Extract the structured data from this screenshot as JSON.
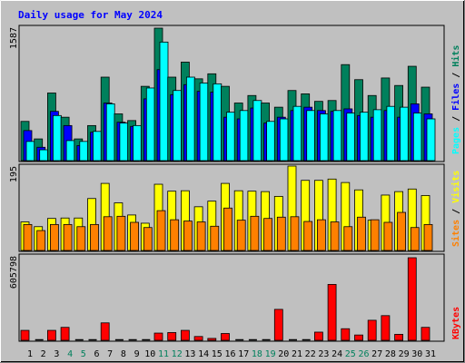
{
  "chart_data": {
    "type": "bar",
    "title": "Daily usage for May 2024",
    "days": [
      "1",
      "2",
      "3",
      "4",
      "5",
      "6",
      "7",
      "8",
      "9",
      "10",
      "11",
      "12",
      "13",
      "14",
      "15",
      "16",
      "17",
      "18",
      "19",
      "20",
      "21",
      "22",
      "23",
      "24",
      "25",
      "26",
      "27",
      "28",
      "29",
      "30",
      "31"
    ],
    "weekend_days": [
      4,
      5,
      11,
      12,
      18,
      19,
      25,
      26
    ],
    "top_panel": {
      "ymax_label": "1587",
      "ymax": 1587,
      "series": [
        {
          "name": "Hits",
          "color": "#00805c",
          "values": [
            470,
            260,
            810,
            520,
            260,
            420,
            1000,
            560,
            480,
            890,
            1587,
            1000,
            1180,
            980,
            1040,
            890,
            690,
            780,
            690,
            640,
            840,
            800,
            710,
            720,
            1150,
            970,
            780,
            990,
            900,
            1130,
            880
          ]
        },
        {
          "name": "Files",
          "color": "#0000ff",
          "values": [
            360,
            160,
            590,
            420,
            180,
            340,
            690,
            460,
            410,
            740,
            1090,
            790,
            910,
            830,
            820,
            520,
            500,
            630,
            450,
            520,
            600,
            640,
            600,
            590,
            620,
            540,
            520,
            600,
            520,
            680,
            560
          ]
        },
        {
          "name": "Pages",
          "color": "#00ffff",
          "values": [
            230,
            130,
            540,
            240,
            230,
            350,
            680,
            450,
            420,
            870,
            1420,
            840,
            1000,
            930,
            920,
            580,
            600,
            720,
            470,
            500,
            650,
            600,
            560,
            600,
            570,
            580,
            610,
            650,
            640,
            570,
            500
          ]
        }
      ],
      "legend": [
        "Pages",
        "Files",
        "Hits"
      ]
    },
    "middle_panel": {
      "ymax_label": "195",
      "ymax": 195,
      "series": [
        {
          "name": "Visits",
          "color": "#ffff00",
          "values": [
            66,
            55,
            74,
            75,
            75,
            120,
            155,
            110,
            82,
            63,
            153,
            137,
            138,
            101,
            114,
            155,
            138,
            137,
            136,
            125,
            195,
            162,
            162,
            165,
            157,
            140,
            70,
            128,
            136,
            142,
            127
          ]
        },
        {
          "name": "Sites",
          "color": "#ff8000",
          "values": [
            60,
            46,
            60,
            60,
            55,
            60,
            78,
            79,
            65,
            53,
            92,
            71,
            68,
            66,
            56,
            98,
            70,
            79,
            74,
            77,
            78,
            67,
            71,
            66,
            55,
            77,
            71,
            65,
            88,
            53,
            60
          ]
        }
      ],
      "legend": [
        "Sites",
        "Visits"
      ]
    },
    "bottom_panel": {
      "ymax_label": "605798",
      "ymax": 605798,
      "series": [
        {
          "name": "KBytes",
          "color": "#ff0000",
          "values": [
            73000,
            0,
            73000,
            95000,
            0,
            0,
            128000,
            0,
            0,
            0,
            53000,
            57000,
            73000,
            28000,
            14000,
            50000,
            0,
            0,
            0,
            227000,
            0,
            0,
            60000,
            410000,
            85000,
            39000,
            147000,
            181000,
            44000,
            605798,
            95000
          ]
        }
      ],
      "legend": [
        "KBytes"
      ]
    }
  }
}
